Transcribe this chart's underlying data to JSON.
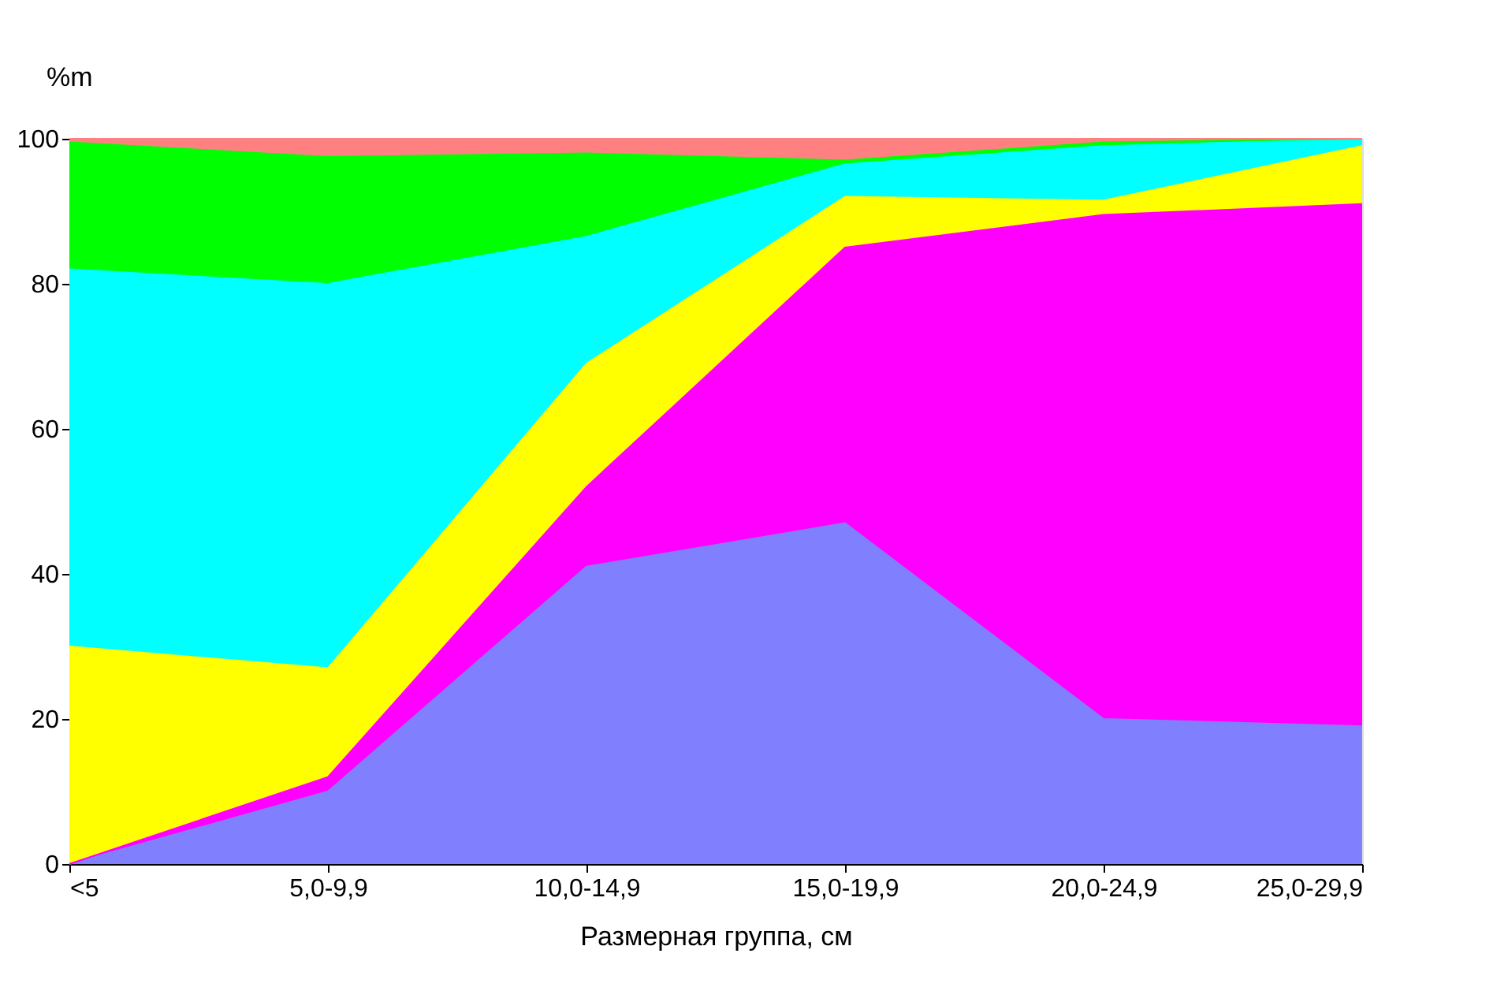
{
  "chart_data": {
    "type": "area",
    "stacked": true,
    "xlabel": "Размерная группа, см",
    "ylabel": "%m",
    "categories": [
      "<5",
      "5,0-9,9",
      "10,0-14,9",
      "15,0-19,9",
      "20,0-24,9",
      "25,0-29,9"
    ],
    "ylim": [
      0,
      100
    ],
    "yticks": [
      0,
      20,
      40,
      60,
      80,
      100
    ],
    "legend": false,
    "series": [
      {
        "color": "#8080ff",
        "values": [
          0,
          10,
          41,
          47,
          20,
          19
        ]
      },
      {
        "color": "#ff00ff",
        "values": [
          0,
          2,
          11,
          38,
          69.5,
          72
        ]
      },
      {
        "color": "#ffff00",
        "values": [
          30,
          15,
          17,
          7,
          2,
          8
        ]
      },
      {
        "color": "#00ffff",
        "values": [
          52,
          53,
          17.5,
          4.5,
          7.5,
          1
        ]
      },
      {
        "color": "#00ff00",
        "values": [
          17.5,
          17.5,
          11.5,
          0.5,
          0.5,
          0
        ]
      },
      {
        "color": "#ff8080",
        "values": [
          0.5,
          2.5,
          2,
          3,
          0.5,
          0
        ]
      }
    ]
  }
}
